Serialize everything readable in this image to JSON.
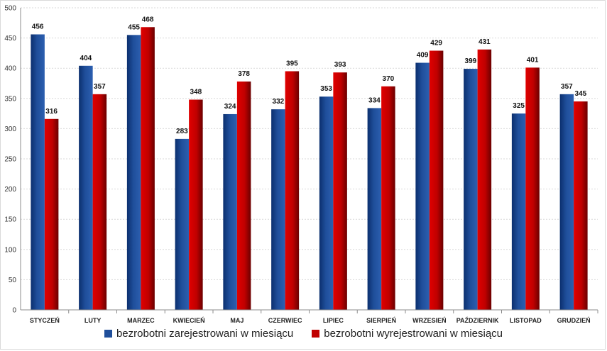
{
  "chart_data": {
    "type": "bar",
    "categories": [
      "STYCZEŃ",
      "LUTY",
      "MARZEC",
      "KWIECIEŃ",
      "MAJ",
      "CZERWIEC",
      "LIPIEC",
      "SIERPIEŃ",
      "WRZESIEŃ",
      "PAŹDZIERNIK",
      "LISTOPAD",
      "GRUDZIEŃ"
    ],
    "series": [
      {
        "name": "bezrobotni zarejestrowani w miesiącu",
        "color": "#1f4e9a",
        "values": [
          456,
          404,
          455,
          283,
          324,
          332,
          353,
          334,
          409,
          399,
          325,
          357
        ]
      },
      {
        "name": "bezrobotni wyrejestrowani w miesiącu",
        "color": "#c00000",
        "values": [
          316,
          357,
          468,
          348,
          378,
          395,
          393,
          370,
          429,
          431,
          401,
          345
        ]
      }
    ],
    "ylim": [
      0,
      500
    ],
    "yticks": [
      0,
      50,
      100,
      150,
      200,
      250,
      300,
      350,
      400,
      450,
      500
    ],
    "grid": true,
    "legend_position": "bottom"
  }
}
